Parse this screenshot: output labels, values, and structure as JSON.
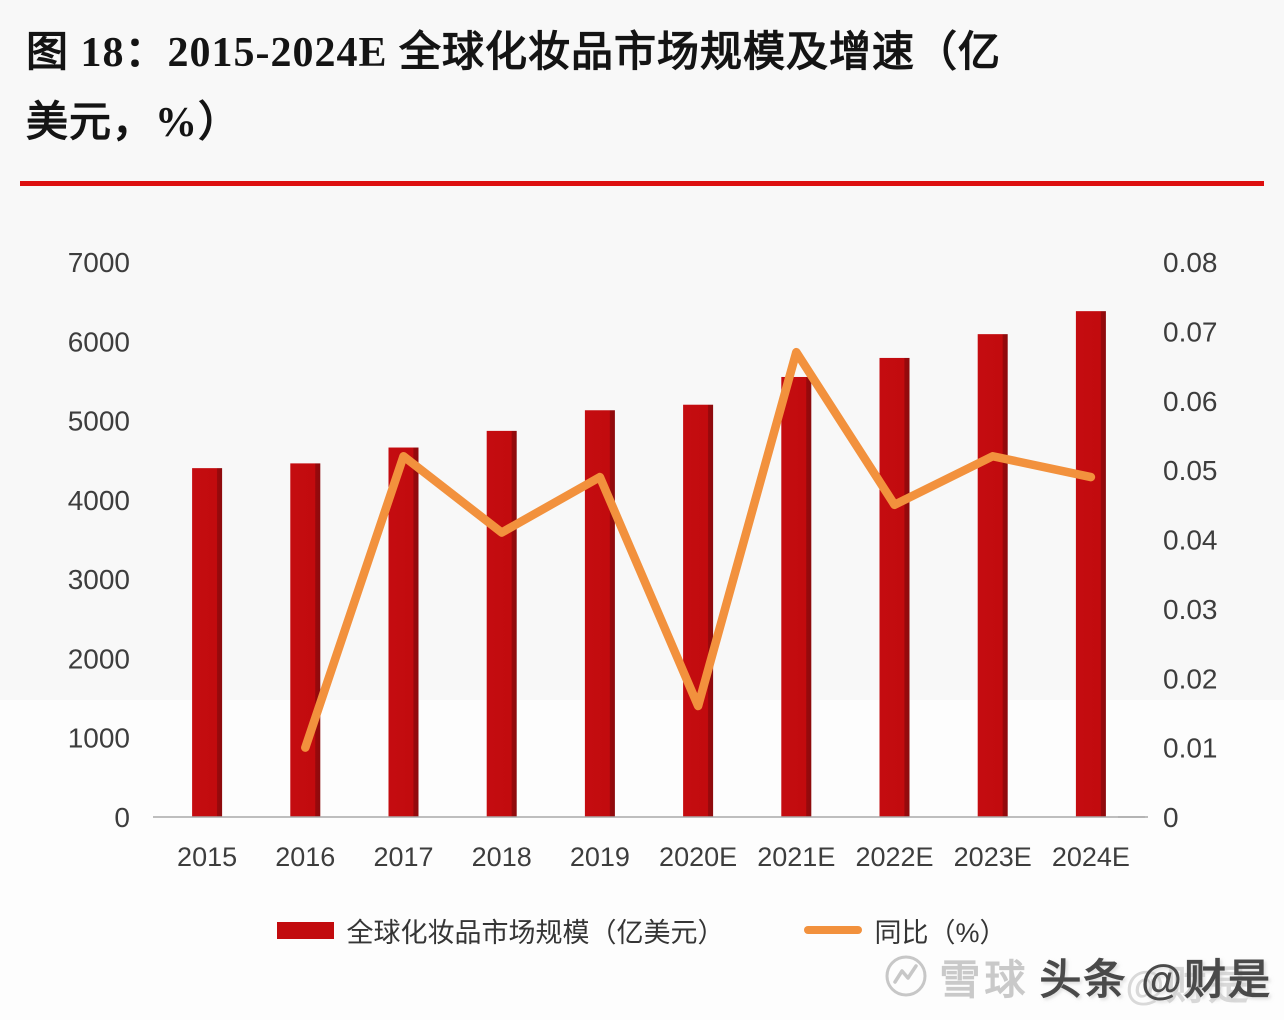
{
  "title": {
    "line1": "图 18：2015-2024E 全球化妆品市场规模及增速（亿",
    "line2": "美元，%）",
    "rule_color": "#dd0f0f"
  },
  "chart_data": {
    "type": "bar+line",
    "categories": [
      "2015",
      "2016",
      "2017",
      "2018",
      "2019",
      "2020E",
      "2021E",
      "2022E",
      "2023E",
      "2024E"
    ],
    "series": [
      {
        "name": "全球化妆品市场规模（亿美元）",
        "type": "bar",
        "axis": "left",
        "color": "#c20b0e",
        "edge_color": "#8c0b0d",
        "values": [
          4400,
          4460,
          4660,
          4870,
          5130,
          5200,
          5550,
          5790,
          6090,
          6380
        ]
      },
      {
        "name": "同比（%）",
        "type": "line",
        "axis": "right",
        "color": "#f2913d",
        "values": [
          null,
          0.01,
          0.052,
          0.041,
          0.049,
          0.016,
          0.067,
          0.045,
          0.052,
          0.049
        ]
      }
    ],
    "left_axis": {
      "min": 0,
      "max": 7000,
      "ticks": [
        "7000",
        "6000",
        "5000",
        "4000",
        "3000",
        "2000",
        "1000",
        "0"
      ]
    },
    "right_axis": {
      "min": 0,
      "max": 0.08,
      "ticks": [
        "0.08",
        "0.07",
        "0.06",
        "0.05",
        "0.04",
        "0.03",
        "0.02",
        "0.01",
        "0"
      ]
    },
    "grid": "off",
    "legend_position": "bottom",
    "axis_label_color": "#3d3d3d",
    "baseline_color": "#a9a9a9"
  },
  "watermark": {
    "brand_light": "雪球",
    "ghost": "@财是",
    "brand_dark": "头条 @财是"
  }
}
